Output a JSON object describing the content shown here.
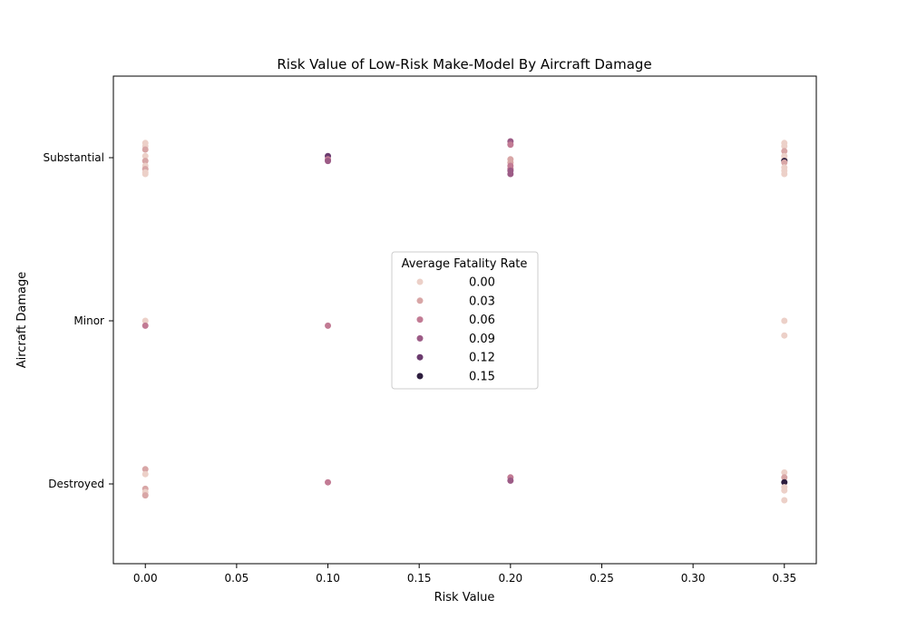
{
  "chart_data": {
    "type": "scatter",
    "title": "Risk Value of Low-Risk Make-Model By Aircraft Damage",
    "xlabel": "Risk Value",
    "ylabel": "Aircraft Damage",
    "xlim": [
      -0.0175,
      0.3675
    ],
    "x_ticks": [
      "0.00",
      "0.05",
      "0.10",
      "0.15",
      "0.20",
      "0.25",
      "0.30",
      "0.35"
    ],
    "x_tick_values": [
      0.0,
      0.05,
      0.1,
      0.15,
      0.2,
      0.25,
      0.3,
      0.35
    ],
    "categories": [
      "Substantial",
      "Minor",
      "Destroyed"
    ],
    "legend": {
      "title": "Average Fatality Rate",
      "placement": "center",
      "entries": [
        "0.00",
        "0.03",
        "0.06",
        "0.09",
        "0.12",
        "0.15"
      ],
      "entry_values": [
        0.0,
        0.03,
        0.06,
        0.09,
        0.12,
        0.15
      ]
    },
    "color_scale": [
      "#ecd0c8",
      "#d8a6a6",
      "#c27b94",
      "#9c5b86",
      "#6b3b6e",
      "#2d1e3e"
    ],
    "grid": false,
    "points": [
      {
        "x": 0.0,
        "category": "Substantial",
        "jitter": -0.09,
        "value": 0.0
      },
      {
        "x": 0.0,
        "category": "Substantial",
        "jitter": -0.07,
        "value": 0.0
      },
      {
        "x": 0.0,
        "category": "Substantial",
        "jitter": -0.05,
        "value": 0.02
      },
      {
        "x": 0.0,
        "category": "Substantial",
        "jitter": -0.01,
        "value": 0.0
      },
      {
        "x": 0.0,
        "category": "Substantial",
        "jitter": 0.02,
        "value": 0.02
      },
      {
        "x": 0.0,
        "category": "Substantial",
        "jitter": 0.05,
        "value": 0.0
      },
      {
        "x": 0.0,
        "category": "Substantial",
        "jitter": 0.07,
        "value": 0.02
      },
      {
        "x": 0.0,
        "category": "Substantial",
        "jitter": 0.09,
        "value": 0.0
      },
      {
        "x": 0.0,
        "category": "Substantial",
        "jitter": 0.1,
        "value": 0.0
      },
      {
        "x": 0.1,
        "category": "Substantial",
        "jitter": -0.01,
        "value": 0.12
      },
      {
        "x": 0.1,
        "category": "Substantial",
        "jitter": 0.01,
        "value": 0.06
      },
      {
        "x": 0.1,
        "category": "Substantial",
        "jitter": 0.02,
        "value": 0.09
      },
      {
        "x": 0.2,
        "category": "Substantial",
        "jitter": -0.1,
        "value": 0.09
      },
      {
        "x": 0.2,
        "category": "Substantial",
        "jitter": -0.08,
        "value": 0.06
      },
      {
        "x": 0.2,
        "category": "Substantial",
        "jitter": 0.01,
        "value": 0.03
      },
      {
        "x": 0.2,
        "category": "Substantial",
        "jitter": 0.03,
        "value": 0.03
      },
      {
        "x": 0.2,
        "category": "Substantial",
        "jitter": 0.05,
        "value": 0.06
      },
      {
        "x": 0.2,
        "category": "Substantial",
        "jitter": 0.07,
        "value": 0.06
      },
      {
        "x": 0.2,
        "category": "Substantial",
        "jitter": 0.08,
        "value": 0.09
      },
      {
        "x": 0.2,
        "category": "Substantial",
        "jitter": 0.1,
        "value": 0.09
      },
      {
        "x": 0.35,
        "category": "Substantial",
        "jitter": -0.09,
        "value": 0.0
      },
      {
        "x": 0.35,
        "category": "Substantial",
        "jitter": -0.07,
        "value": 0.0
      },
      {
        "x": 0.35,
        "category": "Substantial",
        "jitter": -0.04,
        "value": 0.02
      },
      {
        "x": 0.35,
        "category": "Substantial",
        "jitter": -0.01,
        "value": 0.0
      },
      {
        "x": 0.35,
        "category": "Substantial",
        "jitter": 0.01,
        "value": 0.0
      },
      {
        "x": 0.35,
        "category": "Substantial",
        "jitter": 0.02,
        "value": 0.15
      },
      {
        "x": 0.35,
        "category": "Substantial",
        "jitter": 0.03,
        "value": 0.02
      },
      {
        "x": 0.35,
        "category": "Substantial",
        "jitter": 0.06,
        "value": 0.0
      },
      {
        "x": 0.35,
        "category": "Substantial",
        "jitter": 0.08,
        "value": 0.0
      },
      {
        "x": 0.35,
        "category": "Substantial",
        "jitter": 0.1,
        "value": 0.0
      },
      {
        "x": 0.0,
        "category": "Minor",
        "jitter": 0.0,
        "value": 0.0
      },
      {
        "x": 0.0,
        "category": "Minor",
        "jitter": 0.03,
        "value": 0.06
      },
      {
        "x": 0.1,
        "category": "Minor",
        "jitter": 0.03,
        "value": 0.06
      },
      {
        "x": 0.35,
        "category": "Minor",
        "jitter": 0.09,
        "value": 0.0
      },
      {
        "x": 0.35,
        "category": "Minor",
        "jitter": 0.0,
        "value": 0.0
      },
      {
        "x": 0.0,
        "category": "Destroyed",
        "jitter": -0.09,
        "value": 0.03
      },
      {
        "x": 0.0,
        "category": "Destroyed",
        "jitter": -0.06,
        "value": 0.0
      },
      {
        "x": 0.0,
        "category": "Destroyed",
        "jitter": 0.03,
        "value": 0.03
      },
      {
        "x": 0.0,
        "category": "Destroyed",
        "jitter": 0.05,
        "value": 0.0
      },
      {
        "x": 0.0,
        "category": "Destroyed",
        "jitter": 0.07,
        "value": 0.02
      },
      {
        "x": 0.1,
        "category": "Destroyed",
        "jitter": -0.01,
        "value": 0.06
      },
      {
        "x": 0.2,
        "category": "Destroyed",
        "jitter": -0.04,
        "value": 0.06
      },
      {
        "x": 0.2,
        "category": "Destroyed",
        "jitter": -0.02,
        "value": 0.09
      },
      {
        "x": 0.35,
        "category": "Destroyed",
        "jitter": -0.07,
        "value": 0.0
      },
      {
        "x": 0.35,
        "category": "Destroyed",
        "jitter": -0.04,
        "value": 0.02
      },
      {
        "x": 0.35,
        "category": "Destroyed",
        "jitter": -0.01,
        "value": 0.15
      },
      {
        "x": 0.35,
        "category": "Destroyed",
        "jitter": 0.02,
        "value": 0.0
      },
      {
        "x": 0.35,
        "category": "Destroyed",
        "jitter": 0.04,
        "value": 0.0
      },
      {
        "x": 0.35,
        "category": "Destroyed",
        "jitter": 0.1,
        "value": 0.0
      }
    ]
  }
}
